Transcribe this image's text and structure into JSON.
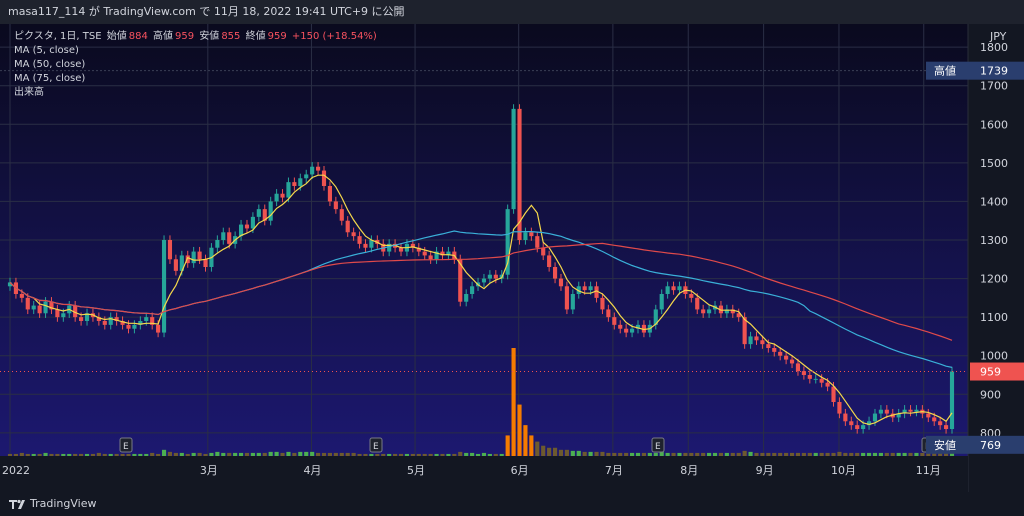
{
  "header": {
    "text": "masa117_114 が TradingView.com で 11月 18, 2022 19:41 UTC+9 に公開"
  },
  "legend": {
    "symbol": "ピクスタ, 1日, TSE",
    "open_label": "始値",
    "open": "884",
    "high_label": "高値",
    "high": "959",
    "low_label": "安値",
    "low": "855",
    "close_label": "終値",
    "close": "959",
    "change": "+150 (+18.54%)",
    "ma5": "MA (5, close)",
    "ma50": "MA (50, close)",
    "ma75": "MA (75, close)",
    "volume": "出来高"
  },
  "price_axis": {
    "currency": "JPY",
    "high_badge_label": "高値",
    "high_badge_value": "1739",
    "last_value": "959",
    "low_badge_label": "安値",
    "low_badge_value": "769"
  },
  "footer": {
    "brand": "TradingView"
  },
  "colors": {
    "up": "#26a69a",
    "down": "#ef5350",
    "ma5": "#f5d84b",
    "ma50": "#3ab0d8",
    "ma75": "#e04a4a",
    "volume_up": "#4caf50",
    "volume_spike": "#f57c00"
  },
  "chart_data": {
    "type": "candlestick",
    "x_ticks": [
      "2022",
      "3月",
      "4月",
      "5月",
      "6月",
      "7月",
      "8月",
      "9月",
      "10月",
      "11月"
    ],
    "yticks": [
      800,
      900,
      1000,
      1100,
      1200,
      1300,
      1400,
      1500,
      1600,
      1700,
      1800
    ],
    "ylim": [
      740,
      1860
    ],
    "earnings_marks": [
      "E",
      "E",
      "E",
      "E"
    ],
    "closes": [
      1190,
      1160,
      1150,
      1120,
      1130,
      1110,
      1140,
      1120,
      1100,
      1110,
      1130,
      1100,
      1090,
      1110,
      1100,
      1090,
      1080,
      1100,
      1090,
      1080,
      1070,
      1080,
      1090,
      1100,
      1080,
      1060,
      1300,
      1250,
      1220,
      1260,
      1240,
      1270,
      1250,
      1230,
      1280,
      1300,
      1320,
      1290,
      1310,
      1340,
      1330,
      1360,
      1380,
      1350,
      1400,
      1420,
      1410,
      1450,
      1440,
      1460,
      1470,
      1490,
      1480,
      1440,
      1400,
      1380,
      1350,
      1320,
      1310,
      1290,
      1280,
      1300,
      1290,
      1270,
      1290,
      1280,
      1270,
      1290,
      1280,
      1270,
      1260,
      1250,
      1270,
      1260,
      1270,
      1250,
      1140,
      1160,
      1180,
      1190,
      1200,
      1210,
      1200,
      1210,
      1380,
      1640,
      1300,
      1320,
      1310,
      1280,
      1260,
      1230,
      1200,
      1180,
      1120,
      1160,
      1180,
      1170,
      1180,
      1150,
      1120,
      1100,
      1080,
      1070,
      1060,
      1070,
      1080,
      1060,
      1080,
      1120,
      1160,
      1180,
      1170,
      1180,
      1160,
      1150,
      1120,
      1110,
      1120,
      1130,
      1110,
      1120,
      1110,
      1100,
      1030,
      1050,
      1040,
      1030,
      1020,
      1010,
      1000,
      990,
      980,
      960,
      950,
      940,
      940,
      930,
      920,
      880,
      850,
      830,
      820,
      810,
      820,
      830,
      850,
      860,
      850,
      840,
      850,
      860,
      855,
      860,
      850,
      840,
      830,
      820,
      810,
      959
    ],
    "volumes": [
      2,
      2,
      3,
      2,
      2,
      2,
      3,
      2,
      2,
      2,
      2,
      2,
      2,
      2,
      2,
      3,
      2,
      2,
      2,
      2,
      2,
      2,
      2,
      2,
      3,
      2,
      6,
      4,
      3,
      3,
      2,
      3,
      3,
      2,
      3,
      4,
      3,
      3,
      3,
      3,
      3,
      3,
      3,
      3,
      4,
      4,
      3,
      4,
      3,
      4,
      4,
      4,
      3,
      3,
      3,
      3,
      3,
      3,
      3,
      2,
      2,
      2,
      2,
      2,
      2,
      2,
      2,
      2,
      2,
      2,
      2,
      2,
      2,
      2,
      2,
      2,
      4,
      3,
      3,
      2,
      3,
      2,
      2,
      2,
      20,
      105,
      50,
      30,
      20,
      14,
      10,
      8,
      8,
      6,
      6,
      5,
      5,
      4,
      4,
      4,
      4,
      3,
      3,
      3,
      3,
      3,
      3,
      3,
      3,
      3,
      4,
      3,
      3,
      3,
      3,
      3,
      3,
      3,
      3,
      3,
      3,
      3,
      3,
      3,
      5,
      4,
      3,
      3,
      3,
      3,
      3,
      3,
      3,
      3,
      3,
      3,
      3,
      3,
      3,
      3,
      4,
      3,
      3,
      3,
      3,
      3,
      3,
      3,
      3,
      3,
      3,
      3,
      3,
      3,
      3,
      3,
      3,
      3,
      3,
      12
    ]
  }
}
